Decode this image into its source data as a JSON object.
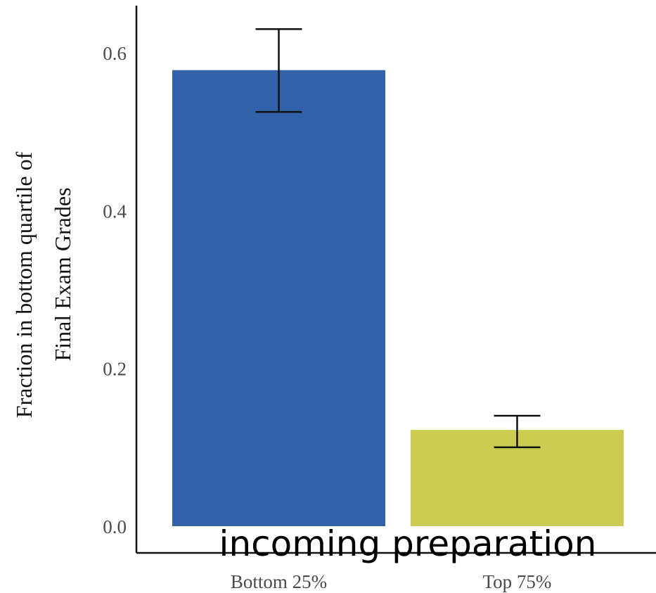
{
  "chart_data": {
    "type": "bar",
    "categories": [
      "Bottom 25%",
      "Top 75%"
    ],
    "values": [
      0.578,
      0.122
    ],
    "error_low": [
      0.525,
      0.1
    ],
    "error_high": [
      0.63,
      0.14
    ],
    "bar_colors": [
      "#3162aa",
      "#cccc52"
    ],
    "title": "",
    "xlabel": "incoming preparation",
    "ylabel_lines": [
      "Fraction in bottom quartile of",
      "Final Exam Grades"
    ],
    "ylim": [
      0,
      0.66
    ],
    "yticks": [
      0.0,
      0.2,
      0.4,
      0.6
    ],
    "ytick_labels": [
      "0.0",
      "0.2",
      "0.4",
      "0.6"
    ],
    "grid": false,
    "legend": "none"
  }
}
